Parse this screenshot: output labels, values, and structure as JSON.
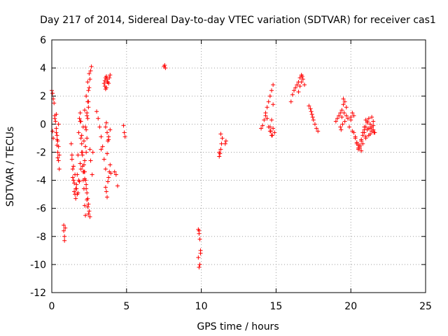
{
  "chart_data": {
    "type": "scatter",
    "title": "Day 217 of 2014, Sidereal Day-to-day VTEC variation (SDTVAR) for receiver cas1",
    "xlabel": "GPS time / hours",
    "ylabel": "SDTVAR / TECUs",
    "xlim": [
      0,
      25
    ],
    "ylim": [
      -12,
      6
    ],
    "xticks": [
      0,
      5,
      10,
      15,
      20,
      25
    ],
    "yticks": [
      -12,
      -10,
      -8,
      -6,
      -4,
      -2,
      0,
      2,
      4,
      6
    ],
    "grid": true,
    "marker": "+",
    "color": "#ff0000",
    "series": [
      {
        "name": "SDTVAR",
        "x": [
          0.0,
          0.05,
          0.1,
          0.15,
          0.2,
          0.25,
          0.3,
          0.35,
          0.4,
          0.45,
          0.5,
          0.05,
          0.1,
          0.2,
          0.3,
          0.35,
          0.4,
          0.45,
          0.5,
          0.4,
          0.35,
          0.3,
          0.45,
          0.8,
          0.8,
          0.85,
          0.85,
          0.9,
          1.3,
          1.35,
          1.4,
          1.45,
          1.5,
          1.55,
          1.6,
          1.65,
          1.7,
          1.75,
          1.8,
          1.85,
          1.9,
          1.95,
          2.0,
          2.05,
          2.1,
          2.15,
          2.2,
          2.25,
          2.3,
          2.35,
          2.4,
          2.45,
          2.5,
          2.55,
          2.6,
          2.65,
          1.4,
          1.5,
          1.6,
          1.7,
          1.8,
          1.9,
          2.0,
          2.1,
          2.2,
          2.3,
          2.4,
          2.5,
          2.45,
          2.4,
          2.35,
          2.3,
          2.25,
          2.2,
          2.15,
          2.1,
          2.05,
          2.0,
          1.95,
          1.9,
          1.35,
          1.45,
          1.55,
          1.65,
          1.75,
          1.85,
          1.95,
          2.05,
          2.15,
          2.25,
          2.35,
          2.45,
          2.55,
          2.6,
          2.7,
          2.75,
          2.2,
          2.3,
          2.35,
          2.4,
          2.45,
          2.5,
          2.55,
          2.45,
          2.4,
          2.35,
          2.3,
          2.25,
          2.2,
          2.15,
          3.0,
          3.1,
          3.2,
          3.3,
          3.4,
          3.5,
          3.6,
          3.7,
          3.8,
          3.9,
          3.5,
          3.55,
          3.6,
          3.65,
          3.7,
          3.75,
          3.8,
          3.85,
          3.9,
          3.55,
          3.6,
          3.65,
          3.7,
          3.6,
          3.65,
          3.7,
          3.75,
          3.8,
          3.85,
          3.9,
          3.95,
          3.6,
          3.65,
          3.7,
          3.75,
          3.8,
          3.3,
          4.2,
          4.3,
          4.4,
          4.8,
          4.85,
          4.9,
          7.5,
          7.55,
          7.6,
          9.8,
          9.85,
          9.9,
          9.95,
          9.8,
          9.85,
          9.9,
          9.95,
          9.85,
          11.2,
          11.25,
          11.3,
          11.35,
          11.4,
          11.6,
          11.65,
          11.2,
          11.3,
          14.0,
          14.1,
          14.2,
          14.3,
          14.4,
          14.5,
          14.6,
          14.7,
          14.8,
          14.9,
          14.3,
          14.4,
          14.5,
          14.6,
          14.7,
          14.8,
          14.6,
          14.7,
          14.8,
          14.65,
          14.75,
          16.0,
          16.1,
          16.2,
          16.3,
          16.4,
          16.5,
          16.6,
          16.7,
          16.8,
          16.9,
          16.5,
          16.6,
          16.7,
          16.75,
          17.2,
          17.3,
          17.4,
          17.5,
          17.6,
          17.7,
          17.8,
          17.35,
          17.45,
          19.0,
          19.1,
          19.2,
          19.3,
          19.4,
          19.5,
          19.6,
          19.7,
          19.8,
          19.9,
          20.0,
          20.1,
          19.3,
          19.4,
          19.5,
          19.35,
          19.45,
          19.55,
          19.6,
          19.7,
          20.2,
          20.3,
          20.4,
          20.5,
          20.6,
          20.7,
          20.8,
          20.9,
          21.0,
          21.1,
          21.2,
          21.3,
          21.4,
          21.5,
          21.6,
          20.3,
          20.4,
          20.5,
          20.6,
          20.7,
          20.8,
          20.9,
          21.0,
          21.1,
          21.2,
          21.3,
          21.4,
          21.5,
          20.5,
          20.6,
          20.7,
          20.8,
          21.0,
          21.2,
          21.3,
          21.4,
          21.5,
          21.55,
          20.0,
          20.1,
          20.2,
          20.9,
          21.0,
          21.1
        ],
        "y": [
          2.4,
          2.2,
          1.8,
          1.5,
          0.6,
          0.2,
          -0.3,
          -0.8,
          -1.2,
          -1.6,
          -2.2,
          -0.5,
          -1.0,
          0.4,
          0.7,
          -1.5,
          -2.0,
          -2.6,
          -3.2,
          -2.4,
          -1.1,
          -0.6,
          0.0,
          -7.2,
          -7.6,
          -8.0,
          -8.3,
          -7.4,
          -1.4,
          -2.2,
          -3.2,
          -4.0,
          -4.8,
          -5.0,
          -5.3,
          -4.6,
          -3.6,
          -2.2,
          -0.6,
          0.4,
          0.8,
          0.2,
          -0.8,
          -2.0,
          -3.4,
          -4.6,
          -5.8,
          -6.5,
          -2.0,
          -1.0,
          0.4,
          1.6,
          2.6,
          3.2,
          3.8,
          4.1,
          -3.8,
          -4.2,
          -4.6,
          -5.0,
          -4.0,
          -2.8,
          -1.4,
          -0.2,
          1.0,
          2.0,
          3.0,
          3.6,
          2.4,
          1.6,
          0.8,
          -0.4,
          -1.6,
          -2.6,
          -3.4,
          -4.0,
          -3.0,
          -2.0,
          -1.0,
          0.2,
          -2.5,
          -3.0,
          -3.6,
          -4.3,
          -4.9,
          -4.1,
          -3.2,
          -2.2,
          -1.2,
          -0.2,
          0.6,
          1.2,
          -1.8,
          -2.6,
          -3.6,
          -2.0,
          -3.9,
          -4.3,
          -4.9,
          -5.3,
          -5.7,
          -6.2,
          -6.6,
          -6.4,
          -5.9,
          -5.4,
          -4.6,
          -4.0,
          -3.4,
          -2.9,
          0.9,
          0.4,
          -0.2,
          -0.9,
          -1.6,
          -2.5,
          -3.2,
          -2.1,
          -1.1,
          -0.4,
          2.9,
          3.1,
          3.3,
          3.4,
          3.2,
          3.0,
          2.9,
          3.3,
          3.5,
          2.7,
          2.5,
          2.6,
          3.0,
          -4.5,
          -4.8,
          -5.2,
          -4.1,
          -3.8,
          -3.4,
          -2.9,
          -3.5,
          -0.2,
          0.1,
          -0.6,
          -1.2,
          -0.9,
          -1.8,
          -3.4,
          -3.6,
          -4.4,
          -0.1,
          -0.6,
          -0.9,
          4.1,
          4.2,
          4.0,
          -7.5,
          -7.8,
          -8.2,
          -9.0,
          -9.5,
          -10.2,
          -10.0,
          -9.2,
          -7.6,
          -2.3,
          -2.1,
          -1.8,
          -1.4,
          -1.0,
          -1.4,
          -1.2,
          -2.0,
          -0.7,
          -0.3,
          -0.1,
          0.3,
          0.6,
          0.4,
          -0.2,
          -0.5,
          -0.8,
          -0.3,
          -0.6,
          0.8,
          1.2,
          1.6,
          2.0,
          2.4,
          2.8,
          -0.2,
          0.3,
          1.4,
          -0.5,
          -0.8,
          1.6,
          2.1,
          2.4,
          2.6,
          2.8,
          3.0,
          3.3,
          3.5,
          3.2,
          2.8,
          2.3,
          2.7,
          3.0,
          3.4,
          1.3,
          1.1,
          0.7,
          0.3,
          0.0,
          -0.3,
          -0.5,
          0.9,
          0.5,
          0.2,
          0.4,
          0.6,
          0.8,
          1.0,
          1.8,
          1.6,
          1.2,
          0.4,
          -0.2,
          0.3,
          -0.5,
          -0.2,
          0.5,
          1.4,
          -0.4,
          0.0,
          0.8,
          0.2,
          0.6,
          -0.6,
          -1.0,
          -1.4,
          -1.8,
          -1.6,
          -1.2,
          -0.8,
          -0.4,
          -0.2,
          0.2,
          0.4,
          0.0,
          -0.2,
          -0.4,
          -0.6,
          -0.9,
          -1.3,
          -1.7,
          -1.5,
          -1.1,
          -0.6,
          -0.2,
          0.3,
          0.1,
          -0.3,
          -0.7,
          -0.5,
          -0.1,
          -1.5,
          -1.7,
          -1.9,
          -1.4,
          -1.0,
          -0.8,
          -0.3,
          0.5,
          0.2,
          -0.6,
          0.5,
          0.8,
          0.6,
          -0.6,
          -0.9,
          -0.4
        ]
      }
    ]
  }
}
